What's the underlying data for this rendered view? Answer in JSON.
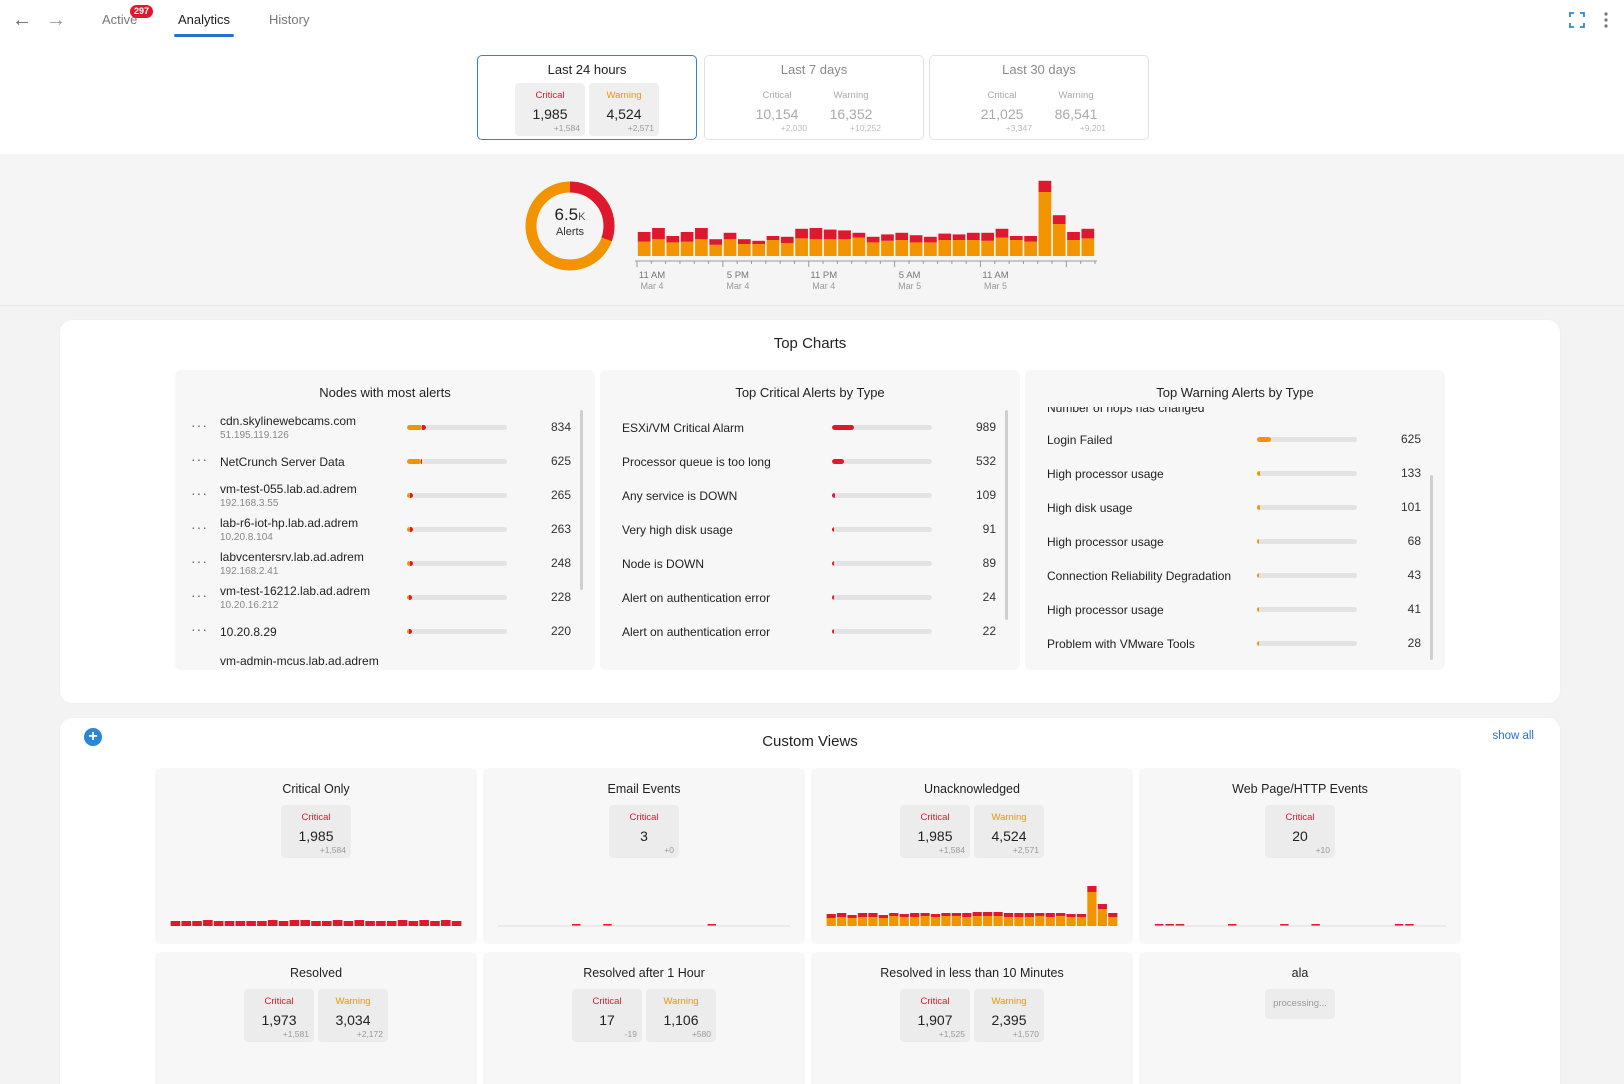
{
  "nav": {
    "back_icon": "arrow-left-icon",
    "forward_icon": "arrow-right-icon",
    "tabs": [
      {
        "label": "Active",
        "badge": "297"
      },
      {
        "label": "Analytics"
      },
      {
        "label": "History"
      }
    ],
    "selected_tab": "Analytics",
    "fullscreen_icon": "fullscreen-icon",
    "menu_icon": "more-vertical-icon"
  },
  "periods": [
    {
      "title": "Last 24 hours",
      "critical": {
        "label": "Critical",
        "value": "1,985",
        "delta": "+1,584"
      },
      "warning": {
        "label": "Warning",
        "value": "4,524",
        "delta": "+2,571"
      }
    },
    {
      "title": "Last 7 days",
      "critical": {
        "label": "Critical",
        "value": "10,154",
        "delta": "+2,030"
      },
      "warning": {
        "label": "Warning",
        "value": "16,352",
        "delta": "+10,252"
      }
    },
    {
      "title": "Last 30 days",
      "critical": {
        "label": "Critical",
        "value": "21,025",
        "delta": "+3,347"
      },
      "warning": {
        "label": "Warning",
        "value": "86,541",
        "delta": "+9,201"
      }
    }
  ],
  "donut": {
    "value": "6.5",
    "unit": "K",
    "label": "Alerts",
    "critical": 1985,
    "warning": 4524,
    "colors": {
      "critical": "#e0182d",
      "warning": "#f29400"
    }
  },
  "chart_data": {
    "type": "bar",
    "stacked": true,
    "series": [
      {
        "name": "Critical",
        "color": "#e0182d",
        "values": [
          12,
          14,
          8,
          12,
          14,
          7,
          8,
          6,
          4,
          5,
          8,
          12,
          14,
          12,
          11,
          6,
          7,
          8,
          9,
          9,
          7,
          8,
          7,
          9,
          10,
          11,
          5,
          7,
          14,
          11,
          10,
          12
        ]
      },
      {
        "name": "Warning",
        "color": "#f29400",
        "values": [
          18,
          21,
          17,
          18,
          21,
          14,
          21,
          15,
          15,
          20,
          16,
          22,
          21,
          21,
          21,
          23,
          17,
          19,
          20,
          17,
          17,
          20,
          20,
          20,
          19,
          23,
          20,
          18,
          80,
          40,
          20,
          22
        ]
      }
    ],
    "tick_labels": [
      {
        "time": "11 AM",
        "date": "Mar 4"
      },
      {
        "time": "5 PM",
        "date": "Mar 4"
      },
      {
        "time": "11 PM",
        "date": "Mar 4"
      },
      {
        "time": "5 AM",
        "date": "Mar 5"
      },
      {
        "time": "11 AM",
        "date": "Mar 5"
      }
    ],
    "ylim": [
      0,
      100
    ]
  },
  "top_charts": {
    "title": "Top Charts",
    "nodes": {
      "title": "Nodes with most alerts",
      "items": [
        {
          "name": "cdn.skylinewebcams.com",
          "sub": "51.195.119.126",
          "count": "834",
          "crit_pct": 0.04,
          "warn_pct": 0.15
        },
        {
          "name": "NetCrunch Server Data",
          "sub": "",
          "count": "625",
          "crit_pct": 0.0,
          "warn_pct": 0.14
        },
        {
          "name": "vm-test-055.lab.ad.adrem",
          "sub": "192.168.3.55",
          "count": "265",
          "crit_pct": 0.03,
          "warn_pct": 0.03
        },
        {
          "name": "lab-r6-iot-hp.lab.ad.adrem",
          "sub": "10.20.8.104",
          "count": "263",
          "crit_pct": 0.03,
          "warn_pct": 0.03
        },
        {
          "name": "labvcentersrv.lab.ad.adrem",
          "sub": "192.168.2.41",
          "count": "248",
          "crit_pct": 0.03,
          "warn_pct": 0.03
        },
        {
          "name": "vm-test-16212.lab.ad.adrem",
          "sub": "10.20.16.212",
          "count": "228",
          "crit_pct": 0.03,
          "warn_pct": 0.02
        },
        {
          "name": "10.20.8.29",
          "sub": "",
          "count": "220",
          "crit_pct": 0.03,
          "warn_pct": 0.02
        }
      ],
      "partial_item": "vm-admin-mcus.lab.ad.adrem"
    },
    "critical": {
      "title": "Top Critical Alerts by Type",
      "items": [
        {
          "name": "ESXi/VM Critical Alarm",
          "count": "989",
          "pct": 0.22
        },
        {
          "name": "Processor queue is too long",
          "count": "532",
          "pct": 0.12
        },
        {
          "name": "Any service is DOWN",
          "count": "109",
          "pct": 0.025
        },
        {
          "name": "Very high disk usage",
          "count": "91",
          "pct": 0.02
        },
        {
          "name": "Node is DOWN",
          "count": "89",
          "pct": 0.02
        },
        {
          "name": "Alert on authentication error",
          "count": "24",
          "pct": 0.008
        },
        {
          "name": "Alert on authentication error",
          "count": "22",
          "pct": 0.008
        }
      ]
    },
    "warning": {
      "title": "Top Warning Alerts by Type",
      "partial_item": "Number of hops has changed",
      "items": [
        {
          "name": "Login Failed",
          "count": "625",
          "pct": 0.14
        },
        {
          "name": "High processor usage",
          "count": "133",
          "pct": 0.03
        },
        {
          "name": "High disk usage",
          "count": "101",
          "pct": 0.025
        },
        {
          "name": "High processor usage",
          "count": "68",
          "pct": 0.018
        },
        {
          "name": "Connection Reliability Degradation",
          "count": "43",
          "pct": 0.012
        },
        {
          "name": "High processor usage",
          "count": "41",
          "pct": 0.012
        },
        {
          "name": "Problem with VMware Tools",
          "count": "28",
          "pct": 0.01
        }
      ]
    }
  },
  "custom_views": {
    "title": "Custom Views",
    "add_icon": "plus-icon",
    "show_all": "show all",
    "views": [
      {
        "title": "Critical Only",
        "stats": [
          {
            "type": "crit",
            "label": "Critical",
            "value": "1,985",
            "delta": "+1,584"
          }
        ],
        "spark": "crit"
      },
      {
        "title": "Email Events",
        "stats": [
          {
            "type": "crit",
            "label": "Critical",
            "value": "3",
            "delta": "+0"
          }
        ],
        "spark": "sparse"
      },
      {
        "title": "Unacknowledged",
        "stats": [
          {
            "type": "crit",
            "label": "Critical",
            "value": "1,985",
            "delta": "+1,584"
          },
          {
            "type": "warn",
            "label": "Warning",
            "value": "4,524",
            "delta": "+2,571"
          }
        ],
        "spark": "full"
      },
      {
        "title": "Web Page/HTTP Events",
        "stats": [
          {
            "type": "crit",
            "label": "Critical",
            "value": "20",
            "delta": "+10"
          }
        ],
        "spark": "sparse2"
      },
      {
        "title": "Resolved",
        "stats": [
          {
            "type": "crit",
            "label": "Critical",
            "value": "1,973",
            "delta": "+1,581"
          },
          {
            "type": "warn",
            "label": "Warning",
            "value": "3,034",
            "delta": "+2,172"
          }
        ],
        "spark": "none"
      },
      {
        "title": "Resolved after 1 Hour",
        "stats": [
          {
            "type": "crit",
            "label": "Critical",
            "value": "17",
            "delta": "-19"
          },
          {
            "type": "warn",
            "label": "Warning",
            "value": "1,106",
            "delta": "+580"
          }
        ],
        "spark": "none"
      },
      {
        "title": "Resolved in less than 10 Minutes",
        "stats": [
          {
            "type": "crit",
            "label": "Critical",
            "value": "1,907",
            "delta": "+1,525"
          },
          {
            "type": "warn",
            "label": "Warning",
            "value": "2,395",
            "delta": "+1,570"
          }
        ],
        "spark": "none"
      },
      {
        "title": "ala",
        "processing": "processing...",
        "spark": "full2"
      }
    ]
  }
}
